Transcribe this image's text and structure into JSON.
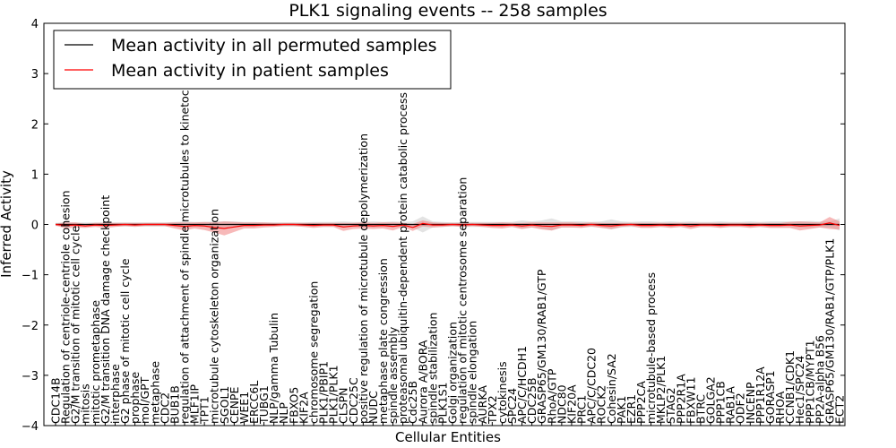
{
  "chart_data": {
    "type": "line",
    "title": "PLK1 signaling events -- 258 samples",
    "xlabel": "Cellular Entities",
    "ylabel": "Inferred Activity",
    "ylim": [
      -4,
      4
    ],
    "yticks": [
      -4,
      -3,
      -2,
      -1,
      0,
      1,
      2,
      3,
      4
    ],
    "legend_position": "top-left",
    "colors": {
      "permuted": "#000000",
      "patient": "#ff0000",
      "patient_band": "#f08080",
      "permuted_band": "#b0b0b0"
    },
    "categories": [
      "CDC14B",
      "Regulation of centriole-centriole cohesion",
      "G2/M transition of mitotic cell cycle",
      "mitosis",
      "mitotic prometaphase",
      "G2/M transition DNA damage checkpoint",
      "interphase",
      "G2 phase of mitotic cell cycle",
      "prophase",
      "mol/GPT",
      "metaphase",
      "CDC2",
      "BUB1B",
      "regulation of attachment of spindle microtubules to kinetochore",
      "MLF1IP",
      "TPT1",
      "microtubule cytoskeleton organization",
      "SGOL1",
      "CENPE",
      "WEE1",
      "ERCC6L",
      "TUBG1",
      "NLP/gamma Tubulin",
      "NLP",
      "FBXO5",
      "KIF2A",
      "chromosome segregation",
      "PLK1/PBIP1",
      "PLK1/PLK1",
      "CLSPN",
      "CDC25C",
      "positive regulation of microtubule depolymerization",
      "NUDC",
      "metaphase plate congression",
      "spindle assembly",
      "proteasomal ubiquitin-dependent protein catabolic process",
      "Cdc25B",
      "Aurora A/BORA",
      "spindle stabilization",
      "PLK1S1",
      "Golgi organization",
      "regulation of mitotic centrosome separation",
      "spindle elongation",
      "AURKA",
      "TPX2",
      "cytokinesis",
      "SPC24",
      "APC/C/HCDH1",
      "CDC25B",
      "GRASP65/GM130/RAB1/GTP",
      "RhoA/GTP",
      "NDC80",
      "KIF20A",
      "PRC1",
      "APC/C/CDC20",
      "ROCK2",
      "Cohesin/SA2",
      "PAK1",
      "EZR1",
      "PPP2CA",
      "microtubule-based process",
      "MKLP2/PLK1",
      "STAG2",
      "PPP2R1A",
      "FBXW11",
      "BTRC",
      "GOLGA2",
      "PPP1CB",
      "RAB1A",
      "ODF2",
      "INCENP",
      "PPP1R12A",
      "GORASP1",
      "RHOA",
      "CCNB1/CDK1",
      "Hec1/SPC24",
      "PPP1CB/MYPT1",
      "PP2A-alpha B56",
      "GRASP65/GM130/RAB1/GTP/PLK1",
      "ECT2"
    ],
    "series": [
      {
        "name": "Mean activity in all permuted samples",
        "values": [
          0,
          0,
          0,
          0,
          0,
          0,
          0,
          0,
          0,
          0,
          0,
          0,
          0,
          0,
          0,
          0,
          0,
          0,
          0,
          0,
          0,
          0,
          0,
          0,
          0,
          0,
          0,
          0,
          0,
          0,
          0,
          0,
          0,
          0,
          0,
          0,
          0,
          0,
          0,
          0,
          0,
          0,
          0,
          0,
          0,
          0,
          0,
          0,
          0,
          0,
          0,
          0,
          0,
          0,
          0,
          0,
          0,
          0,
          0,
          0,
          0,
          0,
          0,
          0,
          0,
          0,
          0,
          0,
          0,
          0,
          0,
          0,
          0,
          0,
          0,
          0,
          0,
          0,
          0,
          0
        ]
      },
      {
        "name": "Mean activity in patient samples",
        "values": [
          0,
          -0.02,
          -0.01,
          -0.03,
          -0.01,
          -0.02,
          -0.01,
          0,
          -0.01,
          0,
          0,
          0,
          -0.02,
          -0.04,
          -0.02,
          -0.03,
          -0.06,
          -0.08,
          -0.05,
          -0.02,
          -0.02,
          -0.01,
          -0.01,
          0,
          0,
          -0.01,
          -0.02,
          -0.01,
          -0.01,
          -0.05,
          -0.03,
          -0.02,
          -0.03,
          -0.02,
          -0.04,
          -0.01,
          -0.06,
          0.02,
          -0.01,
          -0.01,
          0,
          -0.01,
          0,
          -0.01,
          -0.02,
          -0.02,
          -0.01,
          -0.03,
          -0.01,
          -0.03,
          -0.04,
          -0.01,
          -0.01,
          -0.02,
          0,
          -0.02,
          -0.03,
          -0.01,
          0,
          -0.02,
          -0.02,
          -0.01,
          -0.02,
          -0.01,
          -0.03,
          -0.01,
          -0.01,
          -0.02,
          -0.01,
          -0.01,
          -0.02,
          -0.01,
          -0.02,
          -0.02,
          -0.01,
          -0.03,
          -0.02,
          -0.01,
          0.03,
          -0.02
        ]
      }
    ],
    "patient_band": [
      0.02,
      0.06,
      0.05,
      0.04,
      0.04,
      0.05,
      0.04,
      0.03,
      0.04,
      0.03,
      0.03,
      0.03,
      0.06,
      0.08,
      0.06,
      0.08,
      0.1,
      0.14,
      0.1,
      0.06,
      0.06,
      0.05,
      0.04,
      0.03,
      0.03,
      0.04,
      0.05,
      0.04,
      0.04,
      0.08,
      0.06,
      0.06,
      0.06,
      0.06,
      0.08,
      0.04,
      0.07,
      0.06,
      0.05,
      0.04,
      0.03,
      0.04,
      0.03,
      0.04,
      0.05,
      0.06,
      0.04,
      0.06,
      0.05,
      0.07,
      0.08,
      0.05,
      0.05,
      0.05,
      0.04,
      0.05,
      0.06,
      0.04,
      0.03,
      0.05,
      0.05,
      0.04,
      0.05,
      0.04,
      0.06,
      0.04,
      0.04,
      0.05,
      0.04,
      0.04,
      0.05,
      0.04,
      0.05,
      0.05,
      0.06,
      0.09,
      0.07,
      0.05,
      0.12,
      0.08
    ],
    "permuted_band": [
      0.03,
      0.04,
      0.04,
      0.04,
      0.04,
      0.04,
      0.04,
      0.04,
      0.04,
      0.04,
      0.04,
      0.04,
      0.05,
      0.06,
      0.05,
      0.05,
      0.06,
      0.06,
      0.06,
      0.05,
      0.05,
      0.04,
      0.04,
      0.04,
      0.04,
      0.04,
      0.05,
      0.05,
      0.05,
      0.06,
      0.05,
      0.05,
      0.06,
      0.05,
      0.06,
      0.05,
      0.06,
      0.16,
      0.06,
      0.05,
      0.04,
      0.05,
      0.05,
      0.05,
      0.05,
      0.05,
      0.05,
      0.08,
      0.06,
      0.08,
      0.12,
      0.06,
      0.06,
      0.06,
      0.05,
      0.06,
      0.1,
      0.06,
      0.05,
      0.06,
      0.06,
      0.05,
      0.06,
      0.05,
      0.06,
      0.05,
      0.05,
      0.06,
      0.05,
      0.05,
      0.06,
      0.05,
      0.06,
      0.06,
      0.06,
      0.06,
      0.07,
      0.06,
      0.06,
      0.12
    ]
  }
}
